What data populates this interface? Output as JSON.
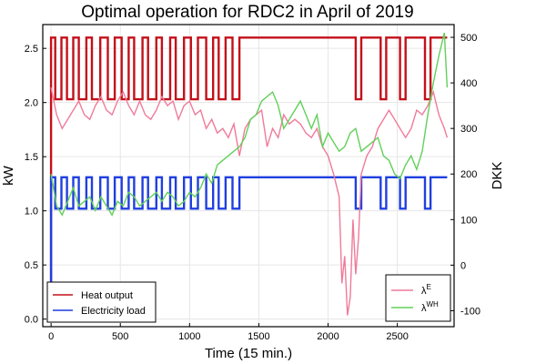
{
  "chart_data": {
    "type": "line",
    "title": "Optimal operation for RDC2 in April of 2019",
    "xlabel": "Time (15 min.)",
    "ylabel_left": "kW",
    "ylabel_right": "DKK",
    "xlim": [
      -60,
      2910
    ],
    "ylim_left": [
      -0.07,
      2.72
    ],
    "ylim_right": [
      -135,
      528
    ],
    "x_ticks": [
      0,
      500,
      1000,
      1500,
      2000,
      2500
    ],
    "y_ticks_left": [
      0.0,
      0.5,
      1.0,
      1.5,
      2.0,
      2.5
    ],
    "y_ticks_left_labels": [
      "0.0",
      "0.5",
      "1.0",
      "1.5",
      "2.0",
      "2.5"
    ],
    "y_ticks_right": [
      -100,
      0,
      100,
      200,
      300,
      400,
      500
    ],
    "grid": true,
    "legend_left": {
      "placement": "bottom-left",
      "entries": [
        {
          "label": "Heat output",
          "color": "#c3101a"
        },
        {
          "label": "Electricity load",
          "color": "#1f3fe0"
        }
      ]
    },
    "legend_right": {
      "placement": "bottom-right",
      "entries": [
        {
          "label": "λ",
          "sup": "E",
          "color": "#f07a9a"
        },
        {
          "label": "λ",
          "sup": "WH",
          "color": "#62d05a"
        }
      ]
    },
    "series": [
      {
        "name": "Heat output",
        "axis": "left",
        "color": "#c3101a",
        "type": "switching",
        "high": 2.6,
        "low": 2.03,
        "on_intervals": [
          [
            0,
            30
          ],
          [
            75,
            115
          ],
          [
            160,
            200
          ],
          [
            255,
            295
          ],
          [
            355,
            410
          ],
          [
            460,
            510
          ],
          [
            560,
            600
          ],
          [
            660,
            700
          ],
          [
            760,
            800
          ],
          [
            860,
            900
          ],
          [
            960,
            1010
          ],
          [
            1060,
            1120
          ],
          [
            1170,
            1210
          ],
          [
            1260,
            1310
          ],
          [
            1360,
            1400
          ],
          [
            1400,
            2200
          ],
          [
            2240,
            2380
          ],
          [
            2420,
            2520
          ],
          [
            2560,
            2700
          ],
          [
            2740,
            2860
          ]
        ],
        "start": [
          0,
          0.12
        ]
      },
      {
        "name": "Electricity load",
        "axis": "left",
        "color": "#1f3fe0",
        "type": "switching",
        "high": 1.31,
        "low": 1.02,
        "on_intervals": [
          [
            0,
            30
          ],
          [
            75,
            115
          ],
          [
            160,
            200
          ],
          [
            255,
            295
          ],
          [
            355,
            410
          ],
          [
            460,
            510
          ],
          [
            560,
            600
          ],
          [
            660,
            700
          ],
          [
            760,
            800
          ],
          [
            860,
            900
          ],
          [
            960,
            1010
          ],
          [
            1060,
            1120
          ],
          [
            1170,
            1210
          ],
          [
            1260,
            1310
          ],
          [
            1360,
            1400
          ],
          [
            1400,
            2200
          ],
          [
            2240,
            2380
          ],
          [
            2420,
            2520
          ],
          [
            2560,
            2700
          ],
          [
            2740,
            2860
          ]
        ],
        "start": [
          0,
          0.3
        ]
      },
      {
        "name": "λ^E",
        "axis": "right",
        "color": "#f07a9a",
        "x": [
          0,
          40,
          80,
          120,
          160,
          200,
          240,
          280,
          320,
          360,
          400,
          440,
          480,
          520,
          560,
          600,
          640,
          680,
          720,
          760,
          800,
          840,
          880,
          920,
          960,
          1000,
          1040,
          1080,
          1120,
          1160,
          1200,
          1240,
          1280,
          1320,
          1360,
          1400,
          1440,
          1480,
          1520,
          1560,
          1600,
          1640,
          1680,
          1720,
          1760,
          1800,
          1840,
          1880,
          1920,
          1960,
          2000,
          2040,
          2080,
          2100,
          2120,
          2140,
          2160,
          2180,
          2200,
          2220,
          2240,
          2280,
          2320,
          2360,
          2400,
          2440,
          2480,
          2520,
          2560,
          2600,
          2640,
          2680,
          2720,
          2760,
          2800,
          2840,
          2860
        ],
        "y": [
          390,
          330,
          300,
          320,
          340,
          360,
          330,
          320,
          350,
          370,
          340,
          330,
          360,
          380,
          350,
          330,
          360,
          330,
          320,
          340,
          370,
          350,
          360,
          320,
          350,
          360,
          330,
          340,
          300,
          320,
          290,
          300,
          280,
          310,
          240,
          300,
          320,
          330,
          340,
          260,
          300,
          280,
          330,
          310,
          320,
          310,
          290,
          280,
          300,
          260,
          240,
          200,
          150,
          -40,
          20,
          -110,
          -70,
          100,
          -20,
          60,
          200,
          240,
          260,
          300,
          320,
          340,
          320,
          300,
          280,
          300,
          340,
          330,
          350,
          380,
          330,
          300,
          280
        ]
      },
      {
        "name": "λ^WH",
        "axis": "right",
        "color": "#62d05a",
        "x": [
          0,
          40,
          80,
          120,
          160,
          200,
          240,
          280,
          320,
          360,
          400,
          440,
          480,
          520,
          560,
          600,
          640,
          680,
          720,
          760,
          800,
          840,
          880,
          920,
          960,
          1000,
          1040,
          1080,
          1120,
          1160,
          1200,
          1240,
          1280,
          1320,
          1360,
          1400,
          1440,
          1480,
          1520,
          1560,
          1600,
          1640,
          1680,
          1720,
          1760,
          1800,
          1840,
          1880,
          1920,
          1960,
          2000,
          2040,
          2080,
          2120,
          2160,
          2200,
          2240,
          2280,
          2320,
          2360,
          2400,
          2440,
          2480,
          2520,
          2560,
          2600,
          2640,
          2680,
          2720,
          2760,
          2800,
          2840,
          2860
        ],
        "y": [
          200,
          130,
          110,
          140,
          170,
          130,
          140,
          150,
          120,
          150,
          130,
          110,
          140,
          130,
          160,
          150,
          130,
          140,
          150,
          160,
          140,
          160,
          150,
          130,
          140,
          160,
          150,
          170,
          200,
          180,
          220,
          230,
          240,
          250,
          260,
          280,
          320,
          330,
          360,
          370,
          380,
          350,
          300,
          320,
          340,
          360,
          330,
          300,
          330,
          260,
          290,
          270,
          250,
          260,
          290,
          300,
          250,
          260,
          270,
          280,
          240,
          230,
          200,
          190,
          220,
          240,
          210,
          250,
          330,
          400,
          460,
          510,
          390
        ]
      }
    ]
  }
}
